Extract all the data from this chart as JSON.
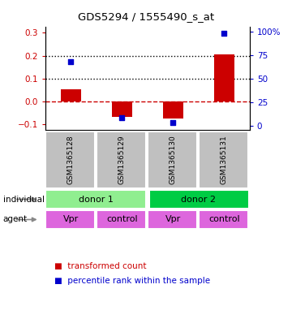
{
  "title": "GDS5294 / 1555490_s_at",
  "samples": [
    "GSM1365128",
    "GSM1365129",
    "GSM1365130",
    "GSM1365131"
  ],
  "bar_values": [
    0.055,
    -0.065,
    -0.075,
    0.205
  ],
  "dot_pct": [
    68,
    8,
    3,
    98
  ],
  "ylim_left": [
    -0.125,
    0.325
  ],
  "ylim_right": [
    -5,
    105
  ],
  "left_ticks": [
    -0.1,
    0.0,
    0.1,
    0.2,
    0.3
  ],
  "right_ticks": [
    0,
    25,
    50,
    75,
    100
  ],
  "individual_labels": [
    "donor 1",
    "donor 2"
  ],
  "donor1_color": "#90ee90",
  "donor2_color": "#00cc44",
  "agent_labels": [
    "Vpr",
    "control",
    "Vpr",
    "control"
  ],
  "agent_color": "#dd66dd",
  "sample_bg_color": "#c0c0c0",
  "bar_color": "#cc0000",
  "dot_color": "#0000cc",
  "legend_bar_label": "transformed count",
  "legend_dot_label": "percentile rank within the sample",
  "hline_dashed_color": "#cc0000",
  "dotted_line_color": "#000000",
  "bar_width": 0.4
}
